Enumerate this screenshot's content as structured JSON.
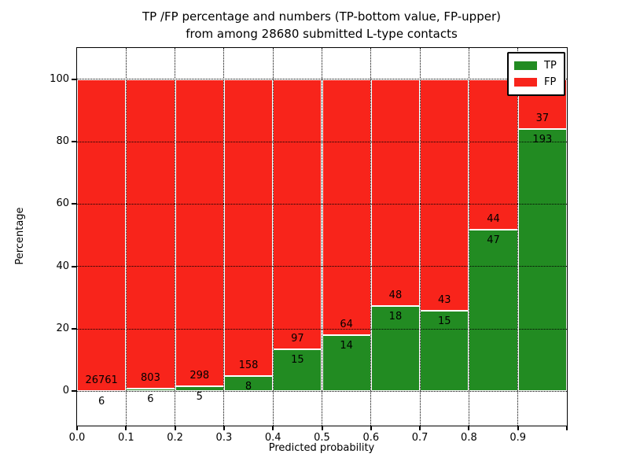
{
  "figure": {
    "title_line1": "TP /FP percentage and numbers (TP-bottom value, FP-upper)",
    "title_line2": "from among 28680 submitted L-type contacts",
    "xlabel": "Predicted probability",
    "ylabel": "Percentage",
    "background": "#ffffff",
    "gridline_color": "#000000",
    "bar_edge_color": "#ffffff"
  },
  "chart_data": {
    "type": "bar",
    "variant": "stacked-100-percent",
    "title": "TP /FP percentage and numbers (TP-bottom value, FP-upper) from among 28680 submitted L-type contacts",
    "xlabel": "Predicted probability",
    "ylabel": "Percentage",
    "total_contacts": 28680,
    "bins": [
      "0.0-0.1",
      "0.1-0.2",
      "0.2-0.3",
      "0.3-0.4",
      "0.4-0.5",
      "0.5-0.6",
      "0.6-0.7",
      "0.7-0.8",
      "0.8-0.9",
      "0.9-1.0"
    ],
    "x_ticks": [
      "0.0",
      "0.1",
      "0.2",
      "0.3",
      "0.4",
      "0.5",
      "0.6",
      "0.7",
      "0.8",
      "0.9"
    ],
    "y_ticks": [
      "0",
      "20",
      "40",
      "60",
      "80",
      "100"
    ],
    "xlim": [
      0.0,
      1.0
    ],
    "ylim": [
      -11,
      110
    ],
    "grid": "dotted",
    "legend_position": "upper-right",
    "series": [
      {
        "name": "TP",
        "color": "#228b22",
        "counts": [
          6,
          6,
          5,
          8,
          15,
          14,
          18,
          15,
          47,
          193
        ],
        "percent": [
          0.02,
          0.74,
          1.65,
          4.82,
          13.39,
          17.95,
          27.27,
          25.86,
          51.65,
          83.91
        ]
      },
      {
        "name": "FP",
        "color": "#f8241b",
        "counts": [
          26761,
          803,
          298,
          158,
          97,
          64,
          48,
          43,
          44,
          37
        ],
        "percent": [
          99.98,
          99.26,
          98.35,
          95.18,
          86.61,
          82.05,
          72.73,
          74.14,
          48.35,
          16.09
        ]
      }
    ]
  }
}
